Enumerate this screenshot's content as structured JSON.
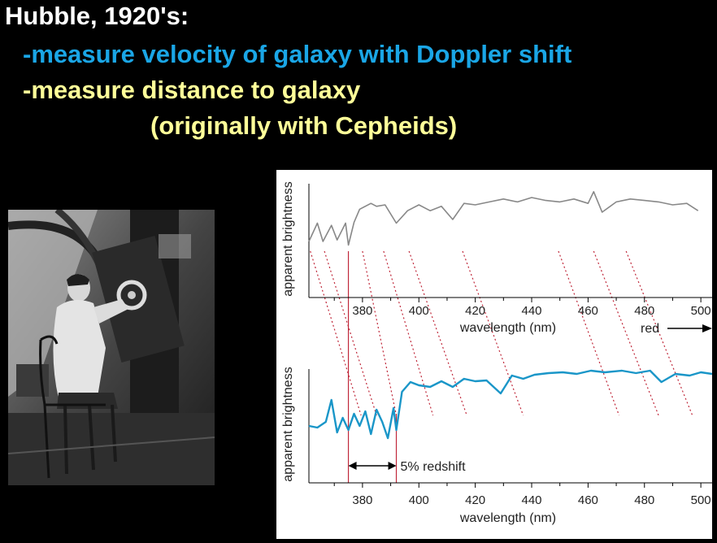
{
  "slide": {
    "title": "Hubble, 1920's:",
    "bullets": [
      {
        "text": "-measure velocity of galaxy with Doppler shift",
        "color": "#1aa6e6"
      },
      {
        "text": "-measure distance to galaxy",
        "color": "#ffff99"
      },
      {
        "text": "(originally with Cepheids)",
        "color": "#ffff99"
      }
    ],
    "title_color": "#ffffff"
  },
  "photo": {
    "icon": "historical-photo-astronomer-at-telescope"
  },
  "chart_data": [
    {
      "type": "line",
      "ylabel": "apparent brightness",
      "xlabel": "wavelength (nm)",
      "xlim": [
        361,
        504
      ],
      "xticks": [
        380,
        400,
        420,
        440,
        460,
        480,
        500
      ],
      "annotation": "red",
      "color": "#888888",
      "series": [
        {
          "x": [
            361,
            364,
            366,
            369,
            371,
            374,
            375,
            377,
            379,
            383,
            385,
            388,
            392,
            396,
            400,
            404,
            408,
            412,
            416,
            420,
            425,
            430,
            435,
            440,
            445,
            450,
            455,
            460,
            462,
            465,
            470,
            475,
            480,
            485,
            490,
            495,
            499
          ],
          "y": [
            0.3,
            0.55,
            0.3,
            0.52,
            0.32,
            0.55,
            0.25,
            0.56,
            0.74,
            0.82,
            0.78,
            0.8,
            0.55,
            0.72,
            0.8,
            0.72,
            0.78,
            0.6,
            0.82,
            0.8,
            0.84,
            0.88,
            0.84,
            0.9,
            0.86,
            0.84,
            0.88,
            0.82,
            0.98,
            0.7,
            0.84,
            0.88,
            0.86,
            0.84,
            0.8,
            0.82,
            0.72
          ]
        }
      ]
    },
    {
      "type": "line",
      "ylabel": "apparent brightness",
      "xlabel": "wavelength (nm)",
      "xlim": [
        361,
        504
      ],
      "xticks": [
        380,
        400,
        420,
        440,
        460,
        480,
        500
      ],
      "annotation": "5% redshift",
      "color": "#1a96c8",
      "series": [
        {
          "x": [
            361,
            364,
            367,
            369,
            371,
            373,
            375,
            377,
            379,
            381,
            383,
            385,
            387,
            389,
            391,
            392,
            394,
            397,
            400,
            404,
            408,
            412,
            416,
            420,
            424,
            429,
            433,
            437,
            441,
            446,
            451,
            456,
            461,
            466,
            472,
            477,
            482,
            486,
            491,
            496,
            500,
            504
          ],
          "y": [
            0.3,
            0.28,
            0.35,
            0.62,
            0.22,
            0.4,
            0.25,
            0.45,
            0.3,
            0.48,
            0.2,
            0.5,
            0.35,
            0.15,
            0.52,
            0.25,
            0.72,
            0.84,
            0.8,
            0.78,
            0.85,
            0.78,
            0.88,
            0.85,
            0.86,
            0.7,
            0.92,
            0.88,
            0.93,
            0.95,
            0.96,
            0.94,
            0.98,
            0.96,
            0.98,
            0.95,
            0.98,
            0.84,
            0.94,
            0.92,
            0.96,
            0.94
          ]
        }
      ]
    }
  ],
  "spectral_lines": [
    {
      "top": 361.5,
      "bottom": 379.5
    },
    {
      "top": 366.5,
      "bottom": 385
    },
    {
      "top": 380,
      "bottom": 392
    },
    {
      "top": 387.5,
      "bottom": 405
    },
    {
      "top": 396.5,
      "bottom": 417
    },
    {
      "top": 415.5,
      "bottom": 437
    },
    {
      "top": 449.5,
      "bottom": 471
    },
    {
      "top": 462,
      "bottom": 485
    },
    {
      "top": 473.5,
      "bottom": 497
    }
  ],
  "red_verticals": [
    375,
    392
  ]
}
